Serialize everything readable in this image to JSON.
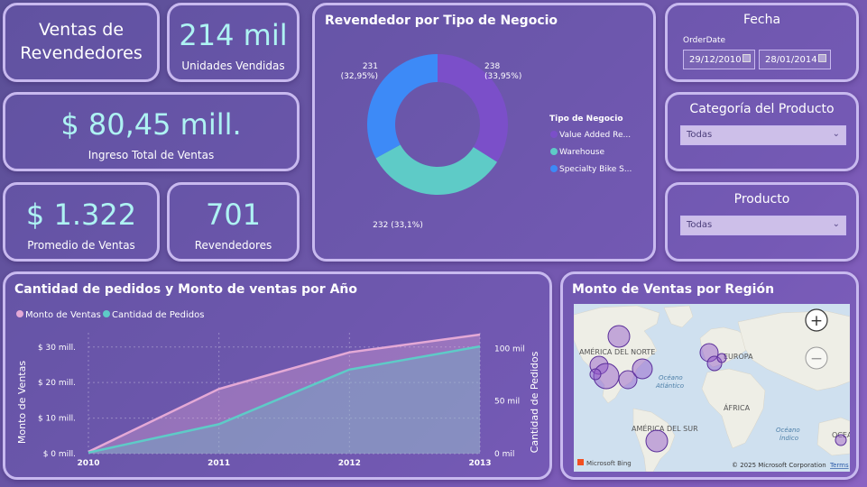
{
  "kpis": {
    "ventas_title": "Ventas de Revendedores",
    "unidades_value": "214 mil",
    "unidades_label": "Unidades Vendidas",
    "ingreso_value": "$ 80,45 mill.",
    "ingreso_label": "Ingreso Total de Ventas",
    "promedio_value": "$ 1.322",
    "promedio_label": "Promedio de Ventas",
    "revendedores_value": "701",
    "revendedores_label": "Revendedores"
  },
  "donut": {
    "title": "Revendedor por Tipo de Negocio",
    "legend_title": "Tipo de Negocio",
    "chart_data": {
      "type": "pie",
      "title": "Revendedor por Tipo de Negocio",
      "slices": [
        {
          "name": "Value Added Re...",
          "value": 238,
          "label": "238\n(33,95%)",
          "color": "#7b4fc9"
        },
        {
          "name": "Warehouse",
          "value": 232,
          "label": "232 (33,1%)",
          "color": "#5ecbc7"
        },
        {
          "name": "Specialty Bike S...",
          "value": 231,
          "label": "231\n(32,95%)",
          "color": "#3d8af7"
        }
      ]
    }
  },
  "fecha": {
    "title": "Fecha",
    "field": "OrderDate",
    "start": "29/12/2010",
    "end": "28/01/2014"
  },
  "categoria": {
    "title": "Categoría del Producto",
    "value": "Todas"
  },
  "producto": {
    "title": "Producto",
    "value": "Todas"
  },
  "linechart": {
    "title": "Cantidad de pedidos y Monto de ventas por Año",
    "chart_data": {
      "type": "area",
      "title": "Cantidad de pedidos y Monto de ventas por Año",
      "categories": [
        "2010",
        "2011",
        "2012",
        "2013"
      ],
      "series": [
        {
          "name": "Monto de Ventas",
          "axis": "left",
          "values": [
            0.5,
            18.2,
            28.5,
            33.5
          ],
          "color": "#e4a9d6"
        },
        {
          "name": "Cantidad de Pedidos",
          "axis": "right",
          "values": [
            1,
            28,
            80,
            102
          ],
          "color": "#5ecbc7"
        }
      ],
      "ylabel": "Monto de Ventas",
      "y2label": "Cantidad de Pedidos",
      "ylim": [
        0,
        34
      ],
      "y2lim": [
        0,
        115
      ],
      "yticks": [
        0,
        10,
        20,
        30
      ],
      "yticklabels": [
        "$ 0 mill.",
        "$ 10 mill.",
        "$ 20 mill.",
        "$ 30 mill."
      ],
      "y2ticks": [
        0,
        50,
        100
      ],
      "y2ticklabels": [
        "0 mil",
        "50 mil",
        "100 mil"
      ]
    }
  },
  "map": {
    "title": "Monto de Ventas por Región",
    "labels": {
      "na": "AMÉRICA DEL NORTE",
      "sa": "AMÉRICA DEL SUR",
      "eu": "EUROPA",
      "af": "ÁFRICA",
      "atl": "Océano\nAtlántico",
      "ind": "Océano\nÍndico",
      "oce": "OCEA"
    },
    "footer_logo": "Microsoft Bing",
    "footer_copy": "© 2025 Microsoft Corporation",
    "footer_terms": "Terms",
    "zoom_in": "+",
    "zoom_out": "−"
  }
}
